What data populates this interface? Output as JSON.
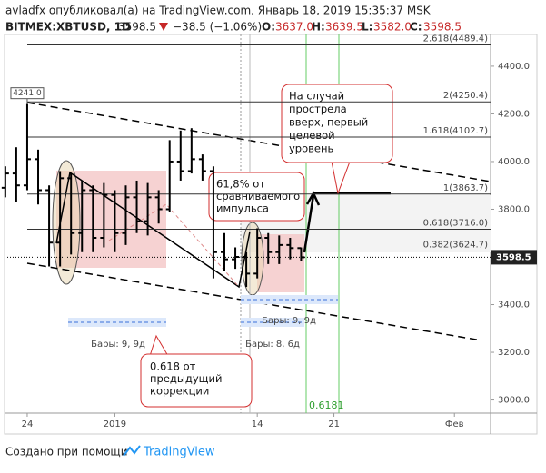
{
  "header": {
    "author_line": "avladfx опубликовал(а) на TradingView.com, Январь 18, 2019 15:35:37 MSK",
    "symbol": "BITMEX:XBTUSD, 1D",
    "price": "3598.5",
    "change": "−38.5 (−1.06%)",
    "o_label": "O:",
    "o": "3637.0",
    "h_label": "H:",
    "h": "3639.5",
    "l_label": "L:",
    "l": "3582.0",
    "c_label": "C:",
    "c": "3598.5"
  },
  "chart_data": {
    "type": "ohlc",
    "color": "#000000",
    "x": [
      -2,
      -1,
      0,
      1,
      2,
      3,
      4,
      5,
      6,
      7,
      8,
      9,
      10,
      11,
      12,
      13,
      14,
      15,
      16,
      17,
      18,
      19,
      20,
      21,
      22,
      23,
      24,
      25
    ],
    "open": [
      3890,
      3950,
      3900,
      4010,
      3880,
      3660,
      3930,
      3700,
      3880,
      3680,
      3860,
      3700,
      3850,
      3750,
      3850,
      3800,
      4000,
      3960,
      4010,
      3960,
      3620,
      3590,
      3600,
      3530,
      3680,
      3620,
      3650,
      3637
    ],
    "high": [
      3980,
      4060,
      4241,
      4050,
      3900,
      3960,
      3950,
      3920,
      3900,
      3910,
      3880,
      3900,
      3920,
      3910,
      3880,
      4090,
      4130,
      4140,
      4030,
      3980,
      3700,
      3640,
      3620,
      3720,
      3700,
      3690,
      3680,
      3639.5
    ],
    "low": [
      3850,
      3830,
      3880,
      3820,
      3560,
      3560,
      3610,
      3620,
      3620,
      3640,
      3620,
      3650,
      3700,
      3690,
      3740,
      3790,
      3920,
      3950,
      3920,
      3510,
      3540,
      3550,
      3474,
      3510,
      3570,
      3570,
      3590,
      3582
    ],
    "close": [
      3950,
      3900,
      4010,
      3880,
      3660,
      3930,
      3700,
      3880,
      3680,
      3860,
      3700,
      3850,
      3750,
      3850,
      3800,
      4000,
      3960,
      4010,
      3960,
      3620,
      3590,
      3600,
      3530,
      3680,
      3620,
      3650,
      3637,
      3598.5
    ],
    "xlim": [
      -2.07,
      42.3
    ],
    "xticks": [
      {
        "value": 0,
        "label": "24"
      },
      {
        "value": 8,
        "label": "2019"
      },
      {
        "value": 21,
        "label": "14"
      },
      {
        "value": 28,
        "label": "21"
      },
      {
        "value": 39,
        "label": "Фев"
      }
    ],
    "ylim": [
      2945,
      4533
    ],
    "yticks": [
      {
        "value": 4400,
        "label": "4400.0"
      },
      {
        "value": 4200,
        "label": "4200.0"
      },
      {
        "value": 4000,
        "label": "4000.0"
      },
      {
        "value": 3800,
        "label": "3800.0"
      },
      {
        "value": 3600,
        "label": "3600.0"
      },
      {
        "value": 3400,
        "label": "3400.0"
      },
      {
        "value": 3200,
        "label": "3200.0"
      },
      {
        "value": 3000,
        "label": "3000.0"
      }
    ],
    "last_price": 3598.5,
    "max_label": {
      "value": 4241,
      "label": "4241.0"
    },
    "fib_levels": [
      {
        "value": 4489.4,
        "label": "2.618(4489.4)"
      },
      {
        "value": 4250.4,
        "label": "2(4250.4)"
      },
      {
        "value": 4102.7,
        "label": "1.618(4102.7)"
      },
      {
        "value": 3863.7,
        "label": "1(3863.7)"
      },
      {
        "value": 3716.0,
        "label": "0.618(3716.0)"
      },
      {
        "value": 3624.7,
        "label": "0.382(3624.7)"
      }
    ],
    "time_fib_label": "0.6181"
  },
  "annotations": {
    "callout_top": [
      "На случай",
      "прострела",
      "вверх, первый",
      "целевой",
      "уровень"
    ],
    "callout_mid": [
      "61,8% от",
      "сравниваемого",
      "импульса"
    ],
    "callout_bottom": [
      "0.618 от",
      "предыдущий",
      "коррекции"
    ],
    "ranges": [
      "Бары: 9, 9д",
      "Бары: 8, 6д",
      "Бары: 9, 9д"
    ]
  },
  "footer": {
    "text": "Создано при помощи",
    "brand": "TradingView"
  }
}
